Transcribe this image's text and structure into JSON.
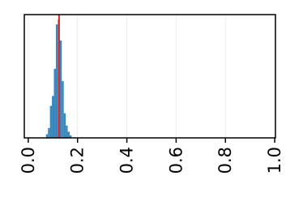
{
  "chart_data": {
    "type": "histogram",
    "bins": [
      0.072,
      0.08,
      0.088,
      0.096,
      0.104,
      0.112,
      0.12,
      0.128,
      0.136,
      0.144,
      0.152,
      0.16,
      0.168,
      0.176
    ],
    "values": [
      3,
      8,
      26,
      34,
      56,
      92,
      96,
      79,
      46,
      20,
      10,
      5,
      2
    ],
    "color": "#3a87bd",
    "vline": 0.125,
    "vline_color": "#d62728",
    "xlim": [
      -0.016,
      1.003
    ],
    "xticks": [
      {
        "value": 0,
        "label": "0.0"
      },
      0.2,
      0.4,
      0.6,
      0.8,
      {
        "value": 1,
        "label": "1.0"
      }
    ],
    "ylim": [
      0,
      100
    ],
    "grid": true
  }
}
